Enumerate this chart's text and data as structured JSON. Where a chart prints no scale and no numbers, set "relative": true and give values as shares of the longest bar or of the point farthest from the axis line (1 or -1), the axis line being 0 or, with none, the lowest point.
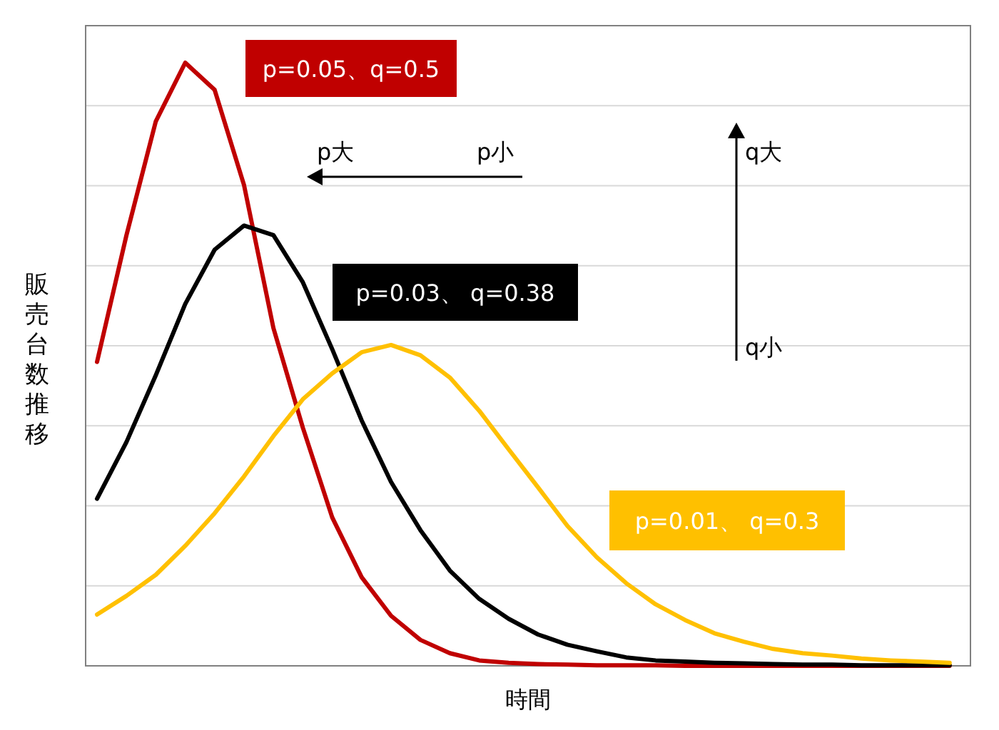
{
  "chart_data": {
    "type": "line",
    "relative": true,
    "grid": "y",
    "xlabel": "時間",
    "ylabel": "販売台数推移",
    "categories": [
      null,
      null,
      null,
      null,
      null,
      null,
      null,
      null,
      null,
      null,
      null,
      null,
      null,
      null,
      null,
      null,
      null,
      null,
      null,
      null,
      null,
      null,
      null,
      null,
      null,
      null,
      null,
      null,
      null,
      null
    ],
    "series": [
      {
        "name": "p=0.05、q=0.5",
        "color": "#c00000",
        "values": [
          0.504,
          0.714,
          0.903,
          1,
          0.955,
          0.797,
          0.56,
          0.395,
          0.246,
          0.147,
          0.083,
          0.043,
          0.021,
          0.009,
          0.005,
          0.003,
          0.002,
          0.001,
          0.001,
          0.001,
          0,
          0,
          0,
          0,
          0,
          0,
          0,
          0,
          0,
          0
        ]
      },
      {
        "name": "p=0.03、 q=0.38",
        "color": "#000000",
        "values": [
          0.277,
          0.371,
          0.482,
          0.6,
          0.69,
          0.73,
          0.714,
          0.636,
          0.525,
          0.407,
          0.305,
          0.225,
          0.158,
          0.111,
          0.078,
          0.052,
          0.035,
          0.024,
          0.014,
          0.009,
          0.007,
          0.005,
          0.004,
          0.003,
          0.002,
          0.002,
          0.001,
          0.001,
          0.001,
          0.001
        ]
      },
      {
        "name": "p=0.01、 q=0.3",
        "color": "#ffc000",
        "values": [
          0.085,
          0.116,
          0.151,
          0.199,
          0.253,
          0.314,
          0.381,
          0.442,
          0.485,
          0.52,
          0.532,
          0.515,
          0.478,
          0.423,
          0.359,
          0.296,
          0.232,
          0.18,
          0.137,
          0.102,
          0.076,
          0.054,
          0.04,
          0.028,
          0.021,
          0.017,
          0.012,
          0.009,
          0.007,
          0.005
        ]
      }
    ],
    "annotations": [
      "p大",
      "p小",
      "q大",
      "q小"
    ]
  }
}
